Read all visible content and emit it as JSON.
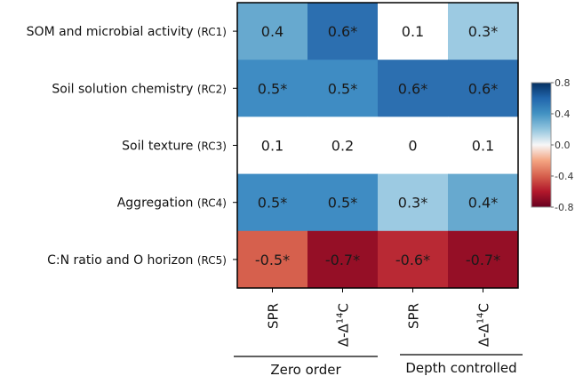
{
  "chart_data": {
    "type": "heatmap",
    "title": "",
    "rows": [
      {
        "label": "SOM and microbial activity",
        "code": "(RC1)"
      },
      {
        "label": "Soil solution chemistry",
        "code": "(RC2)"
      },
      {
        "label": "Soil texture",
        "code": "(RC3)"
      },
      {
        "label": "Aggregation",
        "code": "(RC4)"
      },
      {
        "label": "C:N ratio and O horizon",
        "code": "(RC5)"
      }
    ],
    "columns": [
      {
        "label": "SPR",
        "group": "Zero order"
      },
      {
        "label": "Δ-Δ14C",
        "group": "Zero order"
      },
      {
        "label": "SPR",
        "group": "Depth controlled"
      },
      {
        "label": "Δ-Δ14C",
        "group": "Depth controlled"
      }
    ],
    "column_groups": [
      "Zero order",
      "Depth controlled"
    ],
    "values": [
      [
        0.4,
        0.6,
        0.1,
        0.3
      ],
      [
        0.5,
        0.5,
        0.6,
        0.6
      ],
      [
        0.1,
        0.2,
        0.0,
        0.1
      ],
      [
        0.5,
        0.5,
        0.3,
        0.4
      ],
      [
        -0.5,
        -0.7,
        -0.6,
        -0.7
      ]
    ],
    "cell_labels": [
      [
        "0.4",
        "0.6*",
        "0.1",
        "0.3*"
      ],
      [
        "0.5*",
        "0.5*",
        "0.6*",
        "0.6*"
      ],
      [
        "0.1",
        "0.2",
        "0",
        "0.1"
      ],
      [
        "0.5*",
        "0.5*",
        "0.3*",
        "0.4*"
      ],
      [
        "-0.5*",
        "-0.7*",
        "-0.6*",
        "-0.7*"
      ]
    ],
    "cell_colors": [
      [
        "#67a9cf",
        "#2c6fb0",
        "#ffffff",
        "#9ccae2"
      ],
      [
        "#3f8cc3",
        "#3f8cc3",
        "#2c6fb0",
        "#2c6fb0"
      ],
      [
        "#ffffff",
        "#ffffff",
        "#ffffff",
        "#ffffff"
      ],
      [
        "#3f8cc3",
        "#3f8cc3",
        "#9ccae2",
        "#67a9cf"
      ],
      [
        "#d6604d",
        "#950f26",
        "#b92934",
        "#950f26"
      ]
    ],
    "significance_marker": "*",
    "colorbar": {
      "range": [
        -0.8,
        0.8
      ],
      "ticks": [
        "0.8",
        "0.4",
        "0.0",
        "-0.4",
        "-0.8"
      ],
      "tick_values": [
        0.8,
        0.4,
        0.0,
        -0.4,
        -0.8
      ],
      "colors": [
        "#053061",
        "#2166ac",
        "#4393c3",
        "#92c5de",
        "#f7f7f7",
        "#f4a582",
        "#d6604d",
        "#b2182b",
        "#67001f"
      ]
    }
  }
}
